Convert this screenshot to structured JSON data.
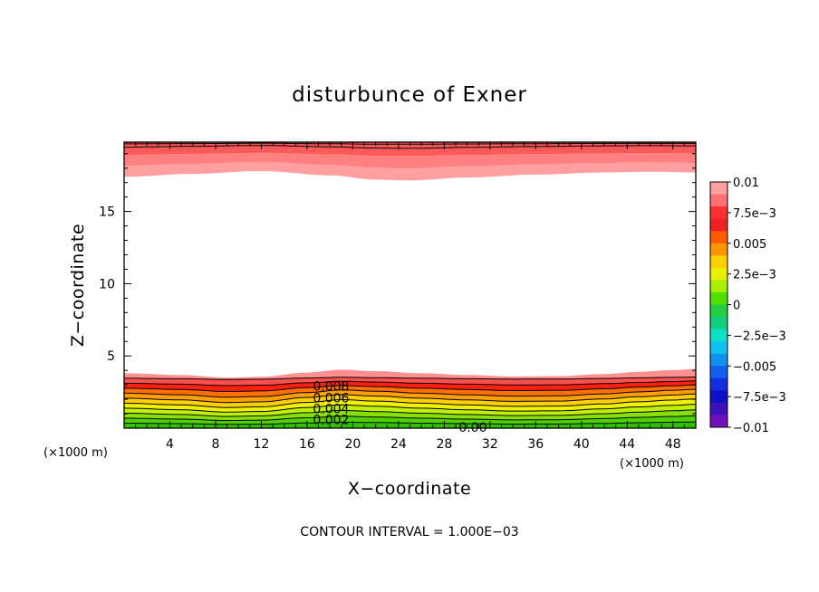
{
  "chart_data": {
    "type": "contour",
    "title": "disturbunce of Exner",
    "xlabel": "X−coordinate",
    "ylabel": "Z−coordinate",
    "x_unit_left": "(×1000 m)",
    "x_unit_right": "(×1000 m)",
    "footer": "CONTOUR INTERVAL = 1.000E−03",
    "xlim": [
      0,
      50
    ],
    "ylim": [
      0,
      19.8
    ],
    "x_ticks": [
      4,
      8,
      12,
      16,
      20,
      24,
      28,
      32,
      36,
      40,
      44,
      48
    ],
    "x_tick_labels": [
      "4",
      "8",
      "12",
      "16",
      "20",
      "24",
      "28",
      "32",
      "36",
      "40",
      "44",
      "48"
    ],
    "y_ticks": [
      5,
      10,
      15
    ],
    "y_tick_labels": [
      "5",
      "10",
      "15"
    ],
    "contour_interval": 0.001,
    "contour_labels": [
      {
        "text": "0.008",
        "x": 18.1,
        "z": 2.9
      },
      {
        "text": "0.006",
        "x": 18.1,
        "z": 2.1
      },
      {
        "text": "0.004",
        "x": 18.1,
        "z": 1.35
      },
      {
        "text": "0.002",
        "x": 18.1,
        "z": 0.6
      },
      {
        "text": "0.00",
        "x": 30.5,
        "z": 0.05
      }
    ],
    "lower_layer": {
      "description": "filled contours 0 to 0.01 near the surface",
      "top_of_shading_km": 3.8,
      "profile_x": [
        0,
        5,
        9,
        12,
        16,
        19,
        22,
        26,
        30,
        34,
        38,
        42,
        45,
        48,
        50
      ],
      "profile_offset_km": [
        0.0,
        -0.12,
        -0.3,
        -0.25,
        0.05,
        0.25,
        0.15,
        0.0,
        -0.12,
        -0.22,
        -0.2,
        -0.05,
        0.1,
        0.22,
        0.3
      ]
    },
    "upper_layer": {
      "description": "filled contours 0.008 to 0.01 near the model top",
      "bottom_of_shading_km": 17.4,
      "profile_x": [
        0,
        6,
        12,
        18,
        22,
        25,
        30,
        36,
        42,
        46,
        50
      ],
      "profile_offset_km": [
        0.0,
        0.2,
        0.4,
        0.1,
        -0.2,
        -0.25,
        -0.05,
        0.15,
        0.3,
        0.35,
        0.3
      ]
    },
    "colorbar": {
      "labels": [
        "0.01",
        "7.5e−3",
        "0.005",
        "2.5e−3",
        "0",
        "−2.5e−3",
        "−0.005",
        "−7.5e−3",
        "−0.01"
      ],
      "levels": [
        0.01,
        0.0075,
        0.005,
        0.0025,
        0,
        -0.0025,
        -0.005,
        -0.0075,
        -0.01
      ],
      "colors_top_to_bottom": [
        "#ff9f9f",
        "#ff7070",
        "#ff3030",
        "#f02020",
        "#ff5a00",
        "#ff9400",
        "#ffd000",
        "#e8f000",
        "#a8f000",
        "#50e000",
        "#20d040",
        "#10d080",
        "#10e0c8",
        "#10c0f0",
        "#1090f0",
        "#1060f0",
        "#1030e0",
        "#1010c8",
        "#4010b8",
        "#7010b8"
      ]
    }
  }
}
